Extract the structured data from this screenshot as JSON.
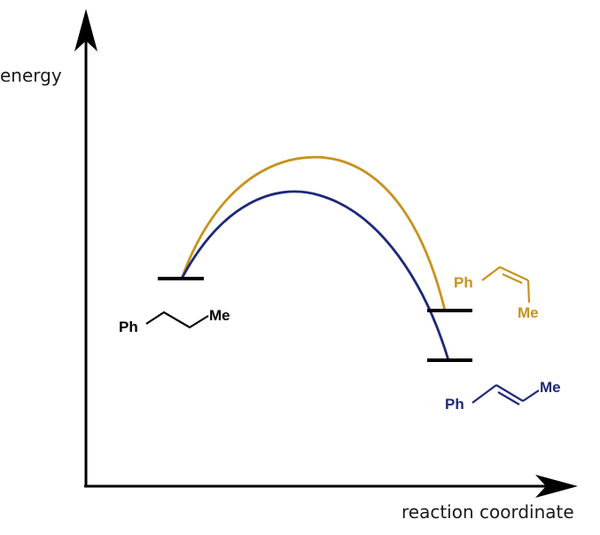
{
  "diagram": {
    "y_axis_label": "energy",
    "x_axis_label": "reaction coordinate",
    "colors": {
      "axis": "#000000",
      "level": "#000000",
      "z_pathway": "#C8921E",
      "e_pathway": "#1C2A78",
      "starting_material": "#000000"
    },
    "starting_material": {
      "left_label": "Ph",
      "right_label": "Me"
    },
    "z_product": {
      "left_label": "Ph",
      "right_label": "Me"
    },
    "e_product": {
      "left_label": "Ph",
      "right_label": "Me"
    },
    "icons": {
      "y_arrow": "arrow-up-icon",
      "x_arrow": "arrow-right-icon"
    }
  }
}
